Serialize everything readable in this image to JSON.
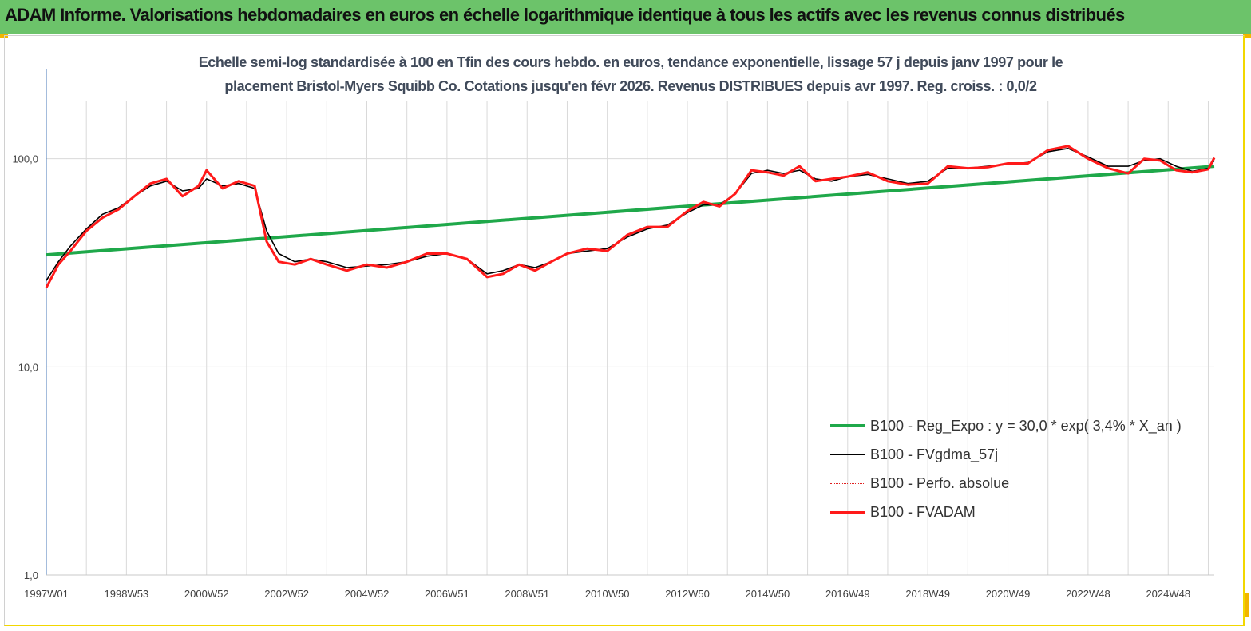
{
  "banner": {
    "title": "ADAM Informe. Valorisations hebdomadaires en euros en échelle logarithmique identique à tous les actifs avec les revenus connus distribués",
    "color": "#6cc36a"
  },
  "chart_data": {
    "type": "line",
    "title_line1": "Echelle semi-log standardisée à 100 en Tfin des cours hebdo. en euros, tendance exponentielle, lissage 57 j depuis janv 1997 pour le",
    "title_line2": "placement Bristol-Myers Squibb Co. Cotations jusqu'en févr 2026. Revenus DISTRIBUES depuis avr 1997. Reg. croiss. : 0,0/2",
    "y_scale": "log",
    "ylim": [
      1,
      190
    ],
    "y_ticks": [
      1,
      10,
      100
    ],
    "y_tick_labels": [
      "1,0",
      "10,0",
      "100,0"
    ],
    "xlim": [
      1997.0,
      2026.15
    ],
    "x_tick_labels": [
      "1997W01",
      "1998W53",
      "2000W52",
      "2002W52",
      "2004W52",
      "2006W51",
      "2008W51",
      "2010W50",
      "2012W50",
      "2014W50",
      "2016W49",
      "2018W49",
      "2020W49",
      "2022W48",
      "2024W48"
    ],
    "x_tick_positions": [
      1997.0,
      1999.0,
      2001.0,
      2003.0,
      2005.0,
      2007.0,
      2009.0,
      2011.0,
      2013.0,
      2015.0,
      2017.0,
      2019.0,
      2021.0,
      2023.0,
      2025.0
    ],
    "grid": "vertical",
    "legend_placement": "bottom-right",
    "series": [
      {
        "name": "B100 - Reg_Expo : y = 30,0 *  exp( 3,4% *  X_an )",
        "color": "#1fa84a",
        "style": "thick",
        "x": [
          1997.0,
          2026.15
        ],
        "y": [
          34.5,
          92.0
        ]
      },
      {
        "name": "B100 - FVgdma_57j",
        "color": "#000000",
        "style": "thin",
        "x": [
          1997.0,
          1997.3,
          1997.6,
          1998.0,
          1998.4,
          1998.8,
          1999.2,
          1999.6,
          2000.0,
          2000.4,
          2000.8,
          2001.0,
          2001.4,
          2001.8,
          2002.2,
          2002.5,
          2002.8,
          2003.2,
          2003.6,
          2004.0,
          2004.5,
          2005.0,
          2005.5,
          2006.0,
          2006.5,
          2007.0,
          2007.5,
          2008.0,
          2008.4,
          2008.8,
          2009.2,
          2009.6,
          2010.0,
          2010.5,
          2011.0,
          2011.5,
          2012.0,
          2012.5,
          2013.0,
          2013.4,
          2013.8,
          2014.2,
          2014.6,
          2015.0,
          2015.4,
          2015.8,
          2016.2,
          2016.6,
          2017.0,
          2017.5,
          2018.0,
          2018.5,
          2019.0,
          2019.5,
          2020.0,
          2020.5,
          2021.0,
          2021.5,
          2022.0,
          2022.5,
          2023.0,
          2023.5,
          2024.0,
          2024.4,
          2024.8,
          2025.2,
          2025.6,
          2026.0,
          2026.15
        ],
        "y": [
          26,
          32,
          38,
          46,
          54,
          58,
          66,
          74,
          78,
          70,
          72,
          80,
          74,
          76,
          72,
          45,
          35,
          32,
          33,
          32,
          30,
          30.5,
          31,
          32,
          34,
          35,
          33,
          28,
          29,
          31,
          30,
          32,
          35,
          36,
          37,
          42,
          46,
          48,
          55,
          60,
          60,
          68,
          85,
          88,
          85,
          88,
          80,
          78,
          82,
          84,
          80,
          76,
          78,
          90,
          90,
          92,
          94,
          96,
          108,
          112,
          102,
          92,
          92,
          98,
          100,
          92,
          87,
          90,
          98
        ]
      },
      {
        "name": "B100 - Perfo. absolue",
        "color": "#e02020",
        "style": "dotted",
        "x": [
          1997.0,
          1997.3,
          1997.6,
          1998.0,
          1998.4,
          1998.8,
          1999.2,
          1999.6,
          2000.0,
          2000.4,
          2000.8,
          2001.0,
          2001.4,
          2001.8,
          2002.2,
          2002.5,
          2002.8,
          2003.2,
          2003.6,
          2004.0,
          2004.5,
          2005.0,
          2005.5,
          2006.0,
          2006.5,
          2007.0,
          2007.5,
          2008.0,
          2008.4,
          2008.8,
          2009.2,
          2009.6,
          2010.0,
          2010.5,
          2011.0,
          2011.5,
          2012.0,
          2012.5,
          2013.0,
          2013.4,
          2013.8,
          2014.2,
          2014.6,
          2015.0,
          2015.4,
          2015.8,
          2016.2,
          2016.6,
          2017.0,
          2017.5,
          2018.0,
          2018.5,
          2019.0,
          2019.5,
          2020.0,
          2020.5,
          2021.0,
          2021.5,
          2022.0,
          2022.5,
          2023.0,
          2023.5,
          2024.0,
          2024.4,
          2024.8,
          2025.2,
          2025.6,
          2026.0,
          2026.15
        ],
        "y": [
          24,
          31,
          36,
          45,
          52,
          57,
          66,
          76,
          80,
          66,
          74,
          88,
          72,
          78,
          74,
          40,
          32,
          31,
          33,
          31,
          29,
          31,
          30,
          32,
          35,
          35,
          33,
          27,
          28,
          31,
          29,
          32,
          35,
          37,
          36,
          43,
          47,
          47,
          56,
          62,
          59,
          68,
          88,
          86,
          83,
          92,
          78,
          80,
          82,
          86,
          78,
          75,
          76,
          92,
          90,
          91,
          95,
          95,
          110,
          115,
          100,
          90,
          85,
          100,
          98,
          88,
          86,
          89,
          101
        ]
      },
      {
        "name": "B100 - FVADAM",
        "color": "#ff1a1a",
        "style": "thick",
        "x": [
          1997.0,
          1997.3,
          1997.6,
          1998.0,
          1998.4,
          1998.8,
          1999.2,
          1999.6,
          2000.0,
          2000.4,
          2000.8,
          2001.0,
          2001.4,
          2001.8,
          2002.2,
          2002.5,
          2002.8,
          2003.2,
          2003.6,
          2004.0,
          2004.5,
          2005.0,
          2005.5,
          2006.0,
          2006.5,
          2007.0,
          2007.5,
          2008.0,
          2008.4,
          2008.8,
          2009.2,
          2009.6,
          2010.0,
          2010.5,
          2011.0,
          2011.5,
          2012.0,
          2012.5,
          2013.0,
          2013.4,
          2013.8,
          2014.2,
          2014.6,
          2015.0,
          2015.4,
          2015.8,
          2016.2,
          2016.6,
          2017.0,
          2017.5,
          2018.0,
          2018.5,
          2019.0,
          2019.5,
          2020.0,
          2020.5,
          2021.0,
          2021.5,
          2022.0,
          2022.5,
          2023.0,
          2023.5,
          2024.0,
          2024.4,
          2024.8,
          2025.2,
          2025.6,
          2026.0,
          2026.15
        ],
        "y": [
          24,
          31,
          36,
          45,
          52,
          57,
          66,
          76,
          80,
          66,
          74,
          88,
          72,
          78,
          74,
          40,
          32,
          31,
          33,
          31,
          29,
          31,
          30,
          32,
          35,
          35,
          33,
          27,
          28,
          31,
          29,
          32,
          35,
          37,
          36,
          43,
          47,
          47,
          56,
          62,
          59,
          68,
          88,
          86,
          83,
          92,
          78,
          80,
          82,
          86,
          78,
          75,
          76,
          92,
          90,
          91,
          95,
          95,
          110,
          115,
          100,
          90,
          85,
          100,
          98,
          88,
          86,
          89,
          101
        ]
      }
    ]
  }
}
